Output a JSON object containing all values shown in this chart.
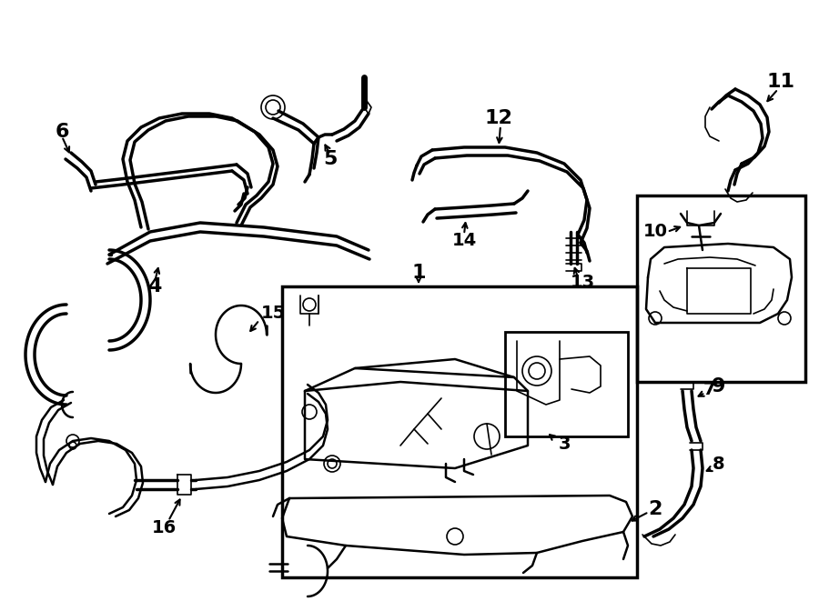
{
  "bg_color": "#ffffff",
  "line_color": "#000000",
  "lw_thick": 2.5,
  "lw_med": 1.8,
  "lw_thin": 1.2,
  "fig_width": 9.0,
  "fig_height": 6.61,
  "dpi": 100,
  "xlim": [
    0,
    900
  ],
  "ylim": [
    0,
    661
  ]
}
